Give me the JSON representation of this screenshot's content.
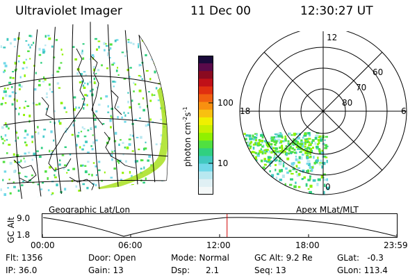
{
  "header": {
    "instrument": "Ultraviolet Imager",
    "date": "11 Dec 00",
    "time": "12:30:27 UT"
  },
  "colorbar": {
    "unit_label": "photon cm",
    "unit_sup1": "-2",
    "unit_mid": "s",
    "unit_sup2": "-1",
    "ticks": [
      "100",
      "10"
    ],
    "colors": [
      "#1a0a3a",
      "#5a0a4a",
      "#8a0a20",
      "#c01018",
      "#e03010",
      "#f06010",
      "#f89010",
      "#f8c010",
      "#f0f000",
      "#c8f000",
      "#90f000",
      "#50e040",
      "#30d080",
      "#40c8c0",
      "#70d8e8",
      "#b8e8f0",
      "#e0f0f4",
      "#f4f8f8"
    ]
  },
  "geo_panel": {
    "label": "Geographic Lat/Lon"
  },
  "polar_panel": {
    "label": "Apex MLat/MLT",
    "mlt_labels": {
      "top": "12",
      "left": "18",
      "right": "6",
      "bottom": "0"
    },
    "lat_labels": [
      "60",
      "70",
      "80"
    ]
  },
  "timeline": {
    "ylabel": "GC Alt",
    "y_top": "9.0",
    "y_bottom": "1.8",
    "x_ticks": [
      "00:00",
      "06:00",
      "12:00",
      "18:00",
      "23:59"
    ],
    "current_fraction": 0.521
  },
  "status": {
    "flt": "Flt: 1356",
    "ip": "IP: 36.0",
    "door": "Door: Open",
    "gain": "Gain: 13",
    "mode": "Mode: Normal",
    "dsp": "Dsp:      2.1",
    "gcalt": "GC Alt: 9.2 Re",
    "seq": "Seq: 13",
    "glat": "GLat:   -0.3",
    "glon": "GLon: 113.4"
  }
}
